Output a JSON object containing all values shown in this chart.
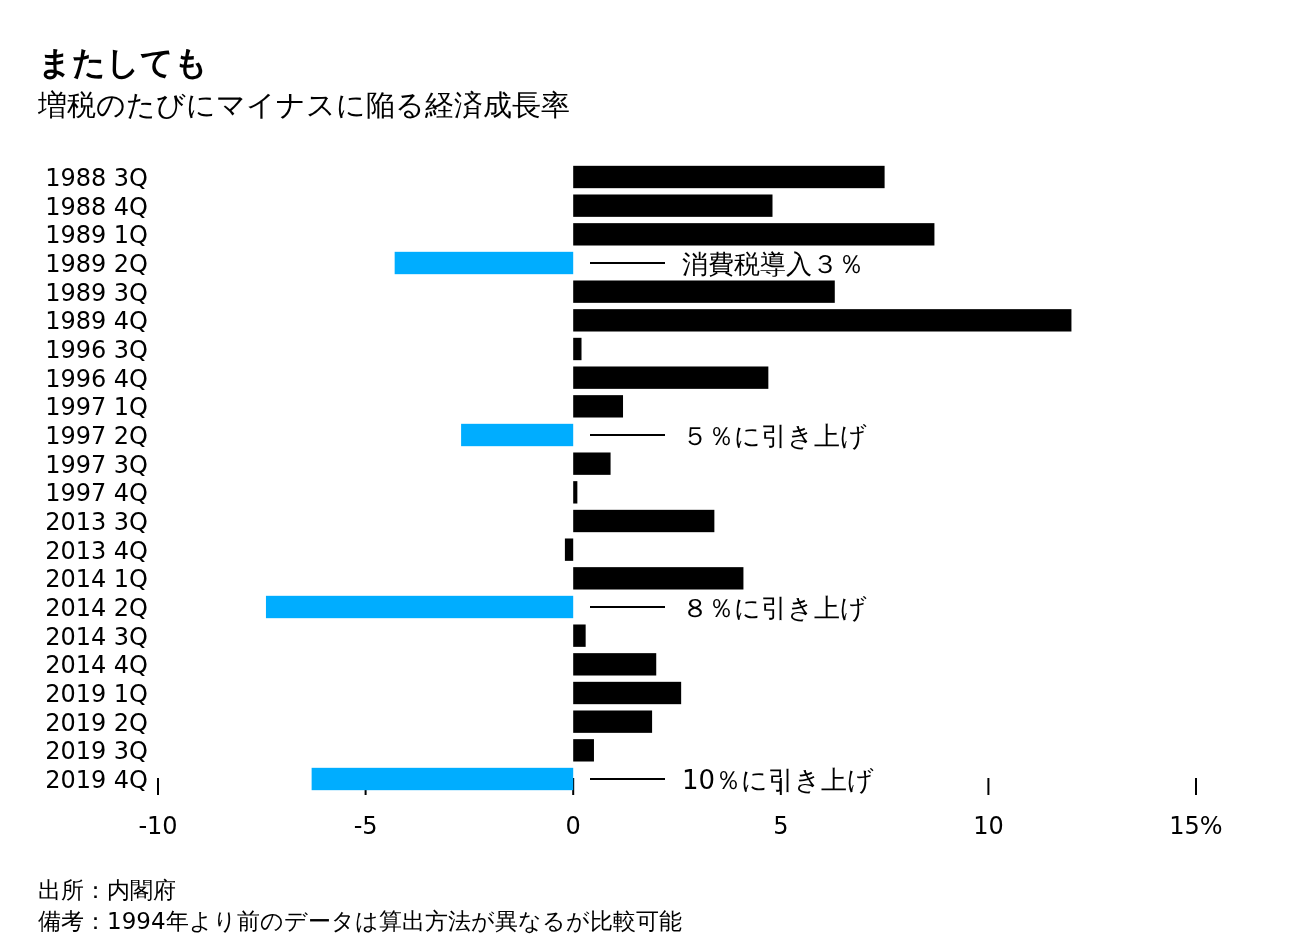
{
  "chart_data": {
    "type": "bar",
    "orientation": "horizontal",
    "title": "またしても",
    "subtitle": "増税のたびにマイナスに陥る経済成長率",
    "categories": [
      "1988 3Q",
      "1988 4Q",
      "1989 1Q",
      "1989 2Q",
      "1989 3Q",
      "1989 4Q",
      "1996 3Q",
      "1996 4Q",
      "1997 1Q",
      "1997 2Q",
      "1997 3Q",
      "1997 4Q",
      "2013 3Q",
      "2013 4Q",
      "2014 1Q",
      "2014 2Q",
      "2014 3Q",
      "2014 4Q",
      "2019 1Q",
      "2019 2Q",
      "2019 3Q",
      "2019 4Q"
    ],
    "values": [
      7.5,
      4.8,
      8.7,
      -4.3,
      6.3,
      12.0,
      0.2,
      4.7,
      1.2,
      -2.7,
      0.9,
      0.1,
      3.4,
      -0.2,
      4.1,
      -7.4,
      0.3,
      2.0,
      2.6,
      1.9,
      0.5,
      -6.3
    ],
    "colors": [
      "#000000",
      "#000000",
      "#000000",
      "#00adff",
      "#000000",
      "#000000",
      "#000000",
      "#000000",
      "#000000",
      "#00adff",
      "#000000",
      "#000000",
      "#000000",
      "#000000",
      "#000000",
      "#00adff",
      "#000000",
      "#000000",
      "#000000",
      "#000000",
      "#000000",
      "#00adff"
    ],
    "xlim": [
      -10,
      15
    ],
    "xticks": [
      -10,
      -5,
      0,
      5,
      10,
      {
        "value": 15,
        "label": "15%"
      }
    ],
    "grid": false,
    "annotations": [
      "消費税導入３％",
      "５％に引き上げ",
      "８％に引き上げ",
      "10％に引き上げ",
      "出所：内閣府",
      "備考：1994年より前のデータは算出方法が異なるが比較可能"
    ]
  }
}
